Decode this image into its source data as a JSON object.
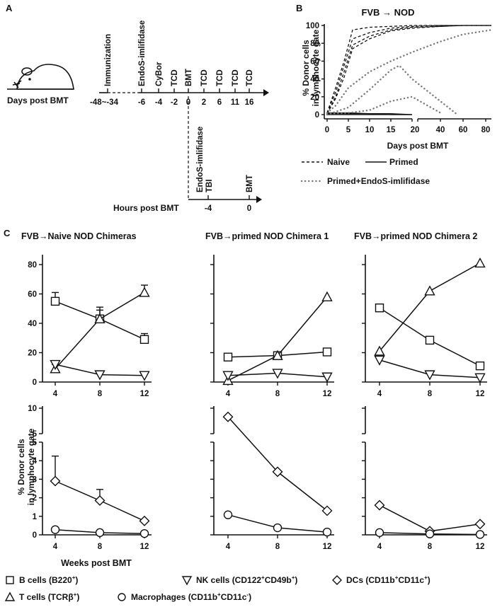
{
  "panel_labels": {
    "a": "A",
    "b": "B",
    "c": "C"
  },
  "panel_a": {
    "days_label": "Days post BMT",
    "hours_label": "Hours post BMT",
    "day_events": [
      {
        "day": "-48~-34",
        "event": "Immunization"
      },
      {
        "day": "-6",
        "event": "EndoS-imlifidase"
      },
      {
        "day": "-4",
        "event": "CyBor"
      },
      {
        "day": "-2",
        "event": "TCD"
      },
      {
        "day": "0",
        "event": "BMT"
      },
      {
        "day": "2",
        "event": "TCD"
      },
      {
        "day": "6",
        "event": "TCD"
      },
      {
        "day": "11",
        "event": "TCD"
      },
      {
        "day": "16",
        "event": "TCD"
      }
    ],
    "hour_events": [
      {
        "hour": "-4",
        "events": [
          "EndoS-imlifidase",
          "TBI"
        ]
      },
      {
        "hour": "0",
        "events": [
          "BMT"
        ]
      }
    ]
  },
  "chart_data": [
    {
      "id": "B",
      "type": "line",
      "title": "FVB → NOD",
      "xlabel": "Days post BMT",
      "ylabel": "% Donor cells in lymphocyte gate",
      "ylabel_lines": [
        "% Donor cells",
        "in lymphocyte gate"
      ],
      "xlim_segment1": [
        0,
        20
      ],
      "xlim_segment2": [
        20,
        85
      ],
      "xticks": [
        "0",
        "5",
        "10",
        "15",
        "20",
        "40",
        "60",
        "80"
      ],
      "yticks": [
        "0",
        "20",
        "40",
        "60",
        "80",
        "100"
      ],
      "ylim": [
        0,
        100
      ],
      "legend": {
        "naive": "Naive",
        "primed": "Primed",
        "endos": "Primed+EndoS-imlifidase"
      },
      "series": [
        {
          "name": "Naive",
          "style": "dashed",
          "x": [
            0,
            2,
            4,
            6,
            10,
            15,
            20,
            40,
            60,
            85
          ],
          "y": [
            2,
            30,
            60,
            95,
            98,
            99,
            100,
            100,
            100,
            100
          ]
        },
        {
          "name": "Naive",
          "style": "dashed",
          "x": [
            0,
            2,
            4,
            6,
            10,
            15,
            20,
            40,
            60,
            85
          ],
          "y": [
            2,
            25,
            55,
            85,
            92,
            97,
            99,
            100,
            100,
            100
          ]
        },
        {
          "name": "Naive",
          "style": "dashed",
          "x": [
            0,
            2,
            4,
            6,
            10,
            15,
            20,
            40,
            60,
            85
          ],
          "y": [
            1,
            20,
            48,
            78,
            88,
            95,
            98,
            99,
            100,
            100
          ]
        },
        {
          "name": "Naive",
          "style": "dashed",
          "x": [
            0,
            2,
            4,
            6,
            10,
            15,
            20,
            40,
            60,
            85
          ],
          "y": [
            1,
            18,
            42,
            74,
            85,
            94,
            97,
            99,
            100,
            100
          ]
        },
        {
          "name": "Primed",
          "style": "solid",
          "x": [
            0,
            5,
            10,
            15,
            20
          ],
          "y": [
            2,
            2,
            1,
            1,
            0
          ]
        },
        {
          "name": "Primed",
          "style": "solid",
          "x": [
            0,
            5,
            10,
            15,
            20
          ],
          "y": [
            1,
            1,
            1,
            0,
            0
          ]
        },
        {
          "name": "Primed",
          "style": "solid",
          "x": [
            0,
            5,
            10,
            15,
            20
          ],
          "y": [
            0,
            0,
            0,
            0,
            0
          ]
        },
        {
          "name": "Primed+EndoS-imlifidase",
          "style": "dotted",
          "x": [
            0,
            2,
            5,
            10,
            15,
            20,
            40,
            60,
            85
          ],
          "y": [
            2,
            10,
            30,
            48,
            60,
            70,
            82,
            90,
            95
          ]
        },
        {
          "name": "Primed+EndoS-imlifidase",
          "style": "dotted",
          "x": [
            0,
            5,
            10,
            15,
            17,
            20,
            40,
            55
          ],
          "y": [
            0,
            8,
            28,
            50,
            55,
            40,
            15,
            0
          ]
        },
        {
          "name": "Primed+EndoS-imlifidase",
          "style": "dotted",
          "x": [
            0,
            5,
            10,
            15,
            20,
            40
          ],
          "y": [
            1,
            2,
            5,
            15,
            20,
            2
          ]
        }
      ]
    },
    {
      "id": "C-top-1",
      "type": "line",
      "title": "FVB→Naive NOD Chimeras",
      "categories": [
        "4",
        "8",
        "12"
      ],
      "yticks": [
        "0",
        "20",
        "40",
        "60",
        "80"
      ],
      "ylim": [
        0,
        85
      ],
      "series": [
        {
          "name": "B cells (B220+)",
          "marker": "square",
          "values": [
            55,
            43,
            29
          ],
          "err": [
            6,
            8,
            4
          ]
        },
        {
          "name": "T cells (TCRβ+)",
          "marker": "triangle-up",
          "values": [
            9,
            43,
            61
          ],
          "err": [
            3,
            6,
            5
          ]
        },
        {
          "name": "NK cells (CD122+CD49b+)",
          "marker": "triangle-down",
          "values": [
            12,
            5,
            4.5
          ],
          "err": [
            0,
            0,
            0
          ]
        }
      ]
    },
    {
      "id": "C-top-2",
      "type": "line",
      "title": "FVB→primed NOD Chimera 1",
      "categories": [
        "4",
        "8",
        "12"
      ],
      "ylim": [
        0,
        85
      ],
      "series": [
        {
          "name": "B cells (B220+)",
          "marker": "square",
          "values": [
            17,
            18,
            20.5
          ]
        },
        {
          "name": "T cells (TCRβ+)",
          "marker": "triangle-up",
          "values": [
            1,
            18,
            58
          ]
        },
        {
          "name": "NK cells (CD122+CD49b+)",
          "marker": "triangle-down",
          "values": [
            4.5,
            6,
            3.5
          ]
        }
      ]
    },
    {
      "id": "C-top-3",
      "type": "line",
      "title": "FVB→primed NOD Chimera 2",
      "categories": [
        "4",
        "8",
        "12"
      ],
      "ylim": [
        0,
        85
      ],
      "series": [
        {
          "name": "B cells (B220+)",
          "marker": "square",
          "values": [
            50.5,
            28.5,
            11
          ]
        },
        {
          "name": "T cells (TCRβ+)",
          "marker": "triangle-up",
          "values": [
            21,
            62,
            81
          ]
        },
        {
          "name": "NK cells (CD122+CD49b+)",
          "marker": "triangle-down",
          "values": [
            15,
            5,
            3
          ]
        }
      ]
    },
    {
      "id": "C-bottom-1",
      "type": "line",
      "categories": [
        "4",
        "8",
        "12"
      ],
      "yticks": [
        "0",
        "1",
        "2",
        "3",
        "4",
        "5",
        "5",
        "10"
      ],
      "ylabel_lines": [
        "% Donor cells",
        "in lymphocyte gate"
      ],
      "xlabel": "Weeks post BMT",
      "series": [
        {
          "name": "DCs (CD11b+CD11c+)",
          "marker": "diamond",
          "values": [
            2.9,
            1.85,
            0.75
          ],
          "err": [
            1.35,
            0.6,
            0
          ]
        },
        {
          "name": "Macrophages (CD11b+CD11c-)",
          "marker": "circle",
          "values": [
            0.28,
            0.12,
            0.07
          ],
          "err": [
            0,
            0,
            0
          ]
        }
      ]
    },
    {
      "id": "C-bottom-2",
      "type": "line",
      "categories": [
        "4",
        "8",
        "12"
      ],
      "series": [
        {
          "name": "DCs (CD11b+CD11c+)",
          "marker": "diamond",
          "values": [
            8.3,
            3.4,
            1.3
          ]
        },
        {
          "name": "Macrophages (CD11b+CD11c-)",
          "marker": "circle",
          "values": [
            1.08,
            0.38,
            0.15
          ]
        }
      ]
    },
    {
      "id": "C-bottom-3",
      "type": "line",
      "categories": [
        "4",
        "8",
        "12"
      ],
      "series": [
        {
          "name": "DCs (CD11b+CD11c+)",
          "marker": "diamond",
          "values": [
            1.6,
            0.2,
            0.58
          ]
        },
        {
          "name": "Macrophages (CD11b+CD11c-)",
          "marker": "circle",
          "values": [
            0.12,
            0.05,
            0.02
          ]
        }
      ]
    }
  ],
  "legend_c": [
    {
      "marker": "square",
      "label": "B cells (B220",
      "sup": "+",
      "tail": ")"
    },
    {
      "marker": "triangle-down",
      "label": "NK cells (CD122",
      "sup": "+",
      "mid": "CD49b",
      "sup2": "+",
      "tail": ")"
    },
    {
      "marker": "diamond",
      "label": "DCs (CD11b",
      "sup": "+",
      "mid": "CD11c",
      "sup2": "+",
      "tail": ")"
    },
    {
      "marker": "triangle-up",
      "label": "T cells (TCRβ",
      "sup": "+",
      "tail": ")"
    },
    {
      "marker": "circle",
      "label": "Macrophages (CD11b",
      "sup": "+",
      "mid": "CD11c",
      "sup2": "-",
      "tail": ")"
    }
  ]
}
